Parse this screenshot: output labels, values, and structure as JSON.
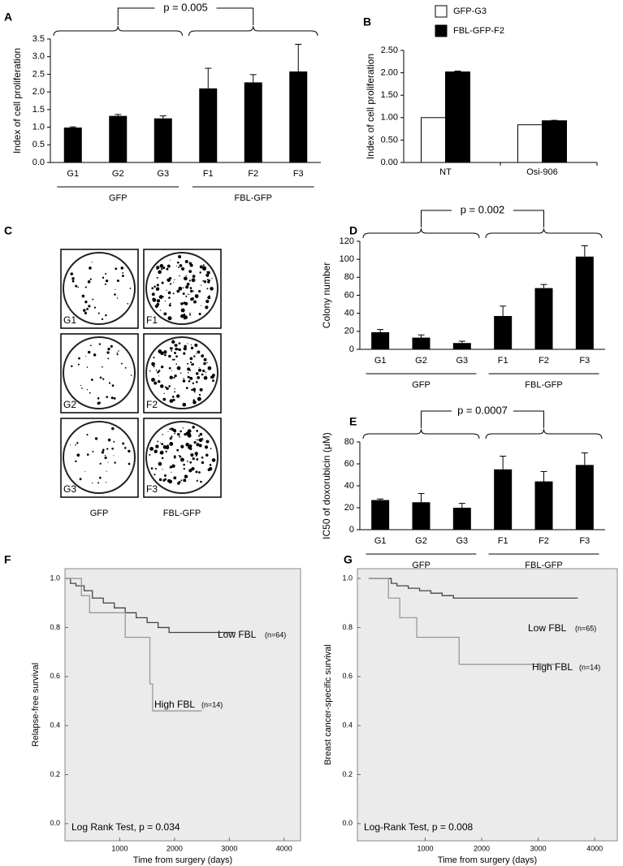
{
  "chart_data": [
    {
      "type": "bar",
      "panel": "A",
      "ylabel": "Index of cell proliferation",
      "categories": [
        "G1",
        "G2",
        "G3",
        "F1",
        "F2",
        "F3"
      ],
      "values": [
        0.99,
        1.32,
        1.25,
        2.1,
        2.27,
        2.58
      ],
      "errors": [
        0.02,
        0.04,
        0.07,
        0.57,
        0.22,
        0.77
      ],
      "color": "#000000",
      "groups": [
        "GFP",
        "FBL-GFP"
      ],
      "p_label": "p = 0.005",
      "ylim": [
        0,
        3.5
      ],
      "yticks": [
        {
          "value": 0,
          "label": "0.0"
        },
        0.5,
        {
          "value": 1,
          "label": "1.0"
        },
        1.5,
        {
          "value": 2,
          "label": "2.0"
        },
        2.5,
        {
          "value": 3,
          "label": "3.0"
        },
        3.5
      ]
    },
    {
      "type": "grouped-bar",
      "panel": "B",
      "ylabel": "Index of cell proliferation",
      "categories": [
        "NT",
        "Osi-906"
      ],
      "series": [
        {
          "name": "GFP-G3",
          "color": "#ffffff",
          "values": [
            1.0,
            0.84
          ]
        },
        {
          "name": "FBL-GFP-F2",
          "color": "#000000",
          "values": [
            2.02,
            0.93
          ],
          "errors": [
            0.02,
            0.01
          ]
        }
      ],
      "ylim": [
        0,
        2.5
      ],
      "yticks": [
        {
          "value": 0,
          "label": "0.00"
        },
        {
          "value": 0.5,
          "label": "0.50"
        },
        {
          "value": 1,
          "label": "1.00"
        },
        {
          "value": 1.5,
          "label": "1.50"
        },
        {
          "value": 2,
          "label": "2.00"
        },
        {
          "value": 2.5,
          "label": "2.50"
        }
      ]
    },
    {
      "type": "image",
      "panel": "C",
      "images": [
        "G1",
        "F1",
        "G2",
        "F2",
        "G3",
        "F3"
      ],
      "groups": [
        "GFP",
        "FBL-GFP"
      ]
    },
    {
      "type": "bar",
      "panel": "D",
      "ylabel": "Colony number",
      "categories": [
        "G1",
        "G2",
        "G3",
        "F1",
        "F2",
        "F3"
      ],
      "values": [
        19,
        13,
        7,
        37,
        68,
        103
      ],
      "errors": [
        3,
        3,
        2,
        11,
        4,
        12
      ],
      "color": "#000000",
      "groups": [
        "GFP",
        "FBL-GFP"
      ],
      "p_label": "p = 0.002",
      "ylim": [
        0,
        120
      ],
      "yticks": [
        0,
        20,
        40,
        60,
        80,
        100,
        120
      ]
    },
    {
      "type": "bar",
      "panel": "E",
      "ylabel": "IC50 of doxorubicin (μM)",
      "categories": [
        "G1",
        "G2",
        "G3",
        "F1",
        "F2",
        "F3"
      ],
      "values": [
        27,
        25,
        20,
        55,
        44,
        59
      ],
      "errors": [
        1,
        8,
        4,
        12,
        9,
        11
      ],
      "color": "#000000",
      "groups": [
        "GFP",
        "FBL-GFP"
      ],
      "p_label": "p = 0.0007",
      "ylim": [
        0,
        80
      ],
      "yticks": [
        0,
        20,
        40,
        60,
        80
      ]
    },
    {
      "type": "survival",
      "panel": "F",
      "ylabel": "Relapse-free survival",
      "xlabel": "Time from surgery (days)",
      "test_label": "Log Rank Test, p = 0.034",
      "xlim": [
        0,
        4300
      ],
      "xticks": [
        1000,
        2000,
        3000,
        4000
      ],
      "ylim": [
        -0.07,
        1.04
      ],
      "yticks": [
        {
          "value": 0,
          "label": "0.0"
        },
        0.2,
        0.4,
        0.6,
        0.8,
        {
          "value": 1,
          "label": "1.0"
        }
      ],
      "series": [
        {
          "name": "Low FBL",
          "n_label": "(n=64)",
          "color": "#444444",
          "x": [
            0,
            100,
            200,
            350,
            500,
            700,
            900,
            1100,
            1300,
            1500,
            1700,
            1900,
            3100
          ],
          "values": [
            1.0,
            0.98,
            0.97,
            0.95,
            0.92,
            0.9,
            0.88,
            0.86,
            0.84,
            0.82,
            0.8,
            0.78,
            0.78
          ]
        },
        {
          "name": "High FBL",
          "n_label": "(n=14)",
          "color": "#999999",
          "x": [
            0,
            300,
            450,
            1100,
            1550,
            1600,
            2500
          ],
          "values": [
            1.0,
            0.93,
            0.86,
            0.76,
            0.57,
            0.46,
            0.46
          ]
        }
      ]
    },
    {
      "type": "survival",
      "panel": "G",
      "ylabel": "Breast cancer-specific survival",
      "xlabel": "Time from surgery (days)",
      "test_label": "Log-Rank Test, p = 0.008",
      "xlim": [
        -200,
        4400
      ],
      "xticks": [
        1000,
        2000,
        3000,
        4000
      ],
      "ylim": [
        -0.07,
        1.04
      ],
      "yticks": [
        {
          "value": 0,
          "label": "0.0"
        },
        0.2,
        0.4,
        0.6,
        0.8,
        {
          "value": 1,
          "label": "1.0"
        }
      ],
      "series": [
        {
          "name": "Low FBL",
          "n_label": "(n=65)",
          "color": "#444444",
          "x": [
            0,
            400,
            500,
            700,
            900,
            1100,
            1300,
            1500,
            1700,
            3700
          ],
          "values": [
            1.0,
            0.98,
            0.97,
            0.96,
            0.95,
            0.94,
            0.93,
            0.92,
            0.92,
            0.92
          ]
        },
        {
          "name": "High FBL",
          "n_label": "(n=14)",
          "color": "#999999",
          "x": [
            0,
            350,
            550,
            850,
            1600,
            3300
          ],
          "values": [
            1.0,
            0.92,
            0.84,
            0.76,
            0.65,
            0.65
          ]
        }
      ]
    }
  ]
}
